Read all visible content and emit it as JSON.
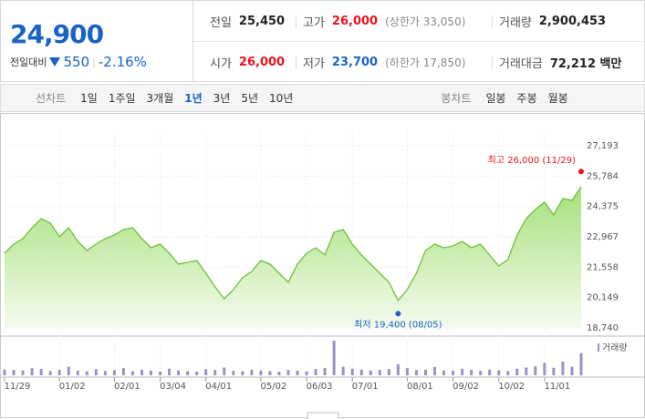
{
  "quote": {
    "price": "24,900",
    "change_label": "전일대비",
    "change": "550",
    "change_rate": "-2.16%"
  },
  "summary": [
    [
      {
        "label": "전일",
        "value": "25,450"
      },
      {
        "label": "고가",
        "value": "26,000",
        "note": "(상한가 33,050)"
      },
      {
        "label": "거래량",
        "value": "2,900,453"
      }
    ],
    [
      {
        "label": "시가",
        "value": "26,000"
      },
      {
        "label": "저가",
        "value": "23,700",
        "note": "(하한가 17,850)"
      },
      {
        "label": "거래대금",
        "value": "72,212 백만"
      }
    ]
  ],
  "line_tabs": {
    "label": "선차트",
    "items": [
      "1일",
      "1주일",
      "3개월",
      "1년",
      "3년",
      "5년",
      "10년"
    ]
  },
  "candle_tabs": {
    "label": "봉차트",
    "items": [
      "일봉",
      "주봉",
      "월봉"
    ]
  },
  "chart_data": {
    "type": "line",
    "categories": [
      "11/29",
      null,
      null,
      null,
      null,
      null,
      "01/02",
      null,
      null,
      null,
      null,
      null,
      "02/01",
      null,
      null,
      null,
      null,
      "03/04",
      null,
      null,
      null,
      null,
      "04/01",
      null,
      null,
      null,
      null,
      null,
      "05/02",
      null,
      null,
      null,
      null,
      "06/03",
      null,
      null,
      null,
      null,
      "07/01",
      null,
      null,
      null,
      null,
      null,
      "08/01",
      null,
      null,
      null,
      null,
      "09/02",
      null,
      null,
      null,
      null,
      "10/02",
      null,
      null,
      null,
      null,
      "11/01",
      null,
      null,
      null,
      null
    ],
    "series": [
      {
        "color": "#6cc23a",
        "values": [
          22206,
          22629,
          22882,
          23390,
          23812,
          23601,
          22967,
          23390,
          22756,
          22333,
          22629,
          22882,
          23052,
          23305,
          23390,
          22882,
          22460,
          22629,
          22206,
          21699,
          21784,
          21868,
          21276,
          20642,
          20093,
          20515,
          21065,
          21361,
          21868,
          21699,
          21276,
          20854,
          21699,
          22206,
          22460,
          22121,
          23178,
          23305,
          22629,
          22121,
          21699,
          21276,
          20854,
          20008,
          20515,
          21276,
          22333,
          22629,
          22460,
          22544,
          22756,
          22460,
          22629,
          22121,
          21614,
          21910,
          23052,
          23812,
          24235,
          24573,
          23981,
          24742,
          24657,
          25292
        ]
      }
    ],
    "volume": {
      "name": "거래량",
      "color": "#9b90c8",
      "values": [
        420000,
        380000,
        350000,
        510000,
        460000,
        300000,
        390000,
        620000,
        340000,
        280000,
        450000,
        310000,
        360000,
        520000,
        290000,
        410000,
        330000,
        270000,
        480000,
        350000,
        300000,
        260000,
        440000,
        380000,
        560000,
        320000,
        290000,
        410000,
        350000,
        300000,
        270000,
        390000,
        330000,
        280000,
        460000,
        520000,
        2500000,
        610000,
        480000,
        420000,
        350000,
        390000,
        450000,
        800000,
        520000,
        380000,
        410000,
        600000,
        350000,
        330000,
        470000,
        390000,
        310000,
        420000,
        360000,
        300000,
        480000,
        560000,
        650000,
        900000,
        540000,
        1000000,
        620000,
        1600000
      ]
    },
    "ylim": [
      18740,
      27193
    ],
    "yticks": [
      {
        "value": 18740,
        "label": "18,740"
      },
      {
        "value": 20149,
        "label": "20,149"
      },
      {
        "value": 21558,
        "label": "21,558"
      },
      {
        "value": 22967,
        "label": "22,967"
      },
      {
        "value": 24375,
        "label": "24,375"
      },
      {
        "value": 25784,
        "label": "25,784"
      },
      {
        "value": 27193,
        "label": "27,193"
      }
    ],
    "grid": true,
    "annotations": [
      {
        "text": "최고 26,000 (11/29)",
        "value": 26000,
        "color": "#e8141f",
        "kind": "max"
      },
      {
        "text": "최저 19,400 (08/05)",
        "value": 19400,
        "color": "#1a63c6",
        "kind": "min"
      }
    ]
  }
}
